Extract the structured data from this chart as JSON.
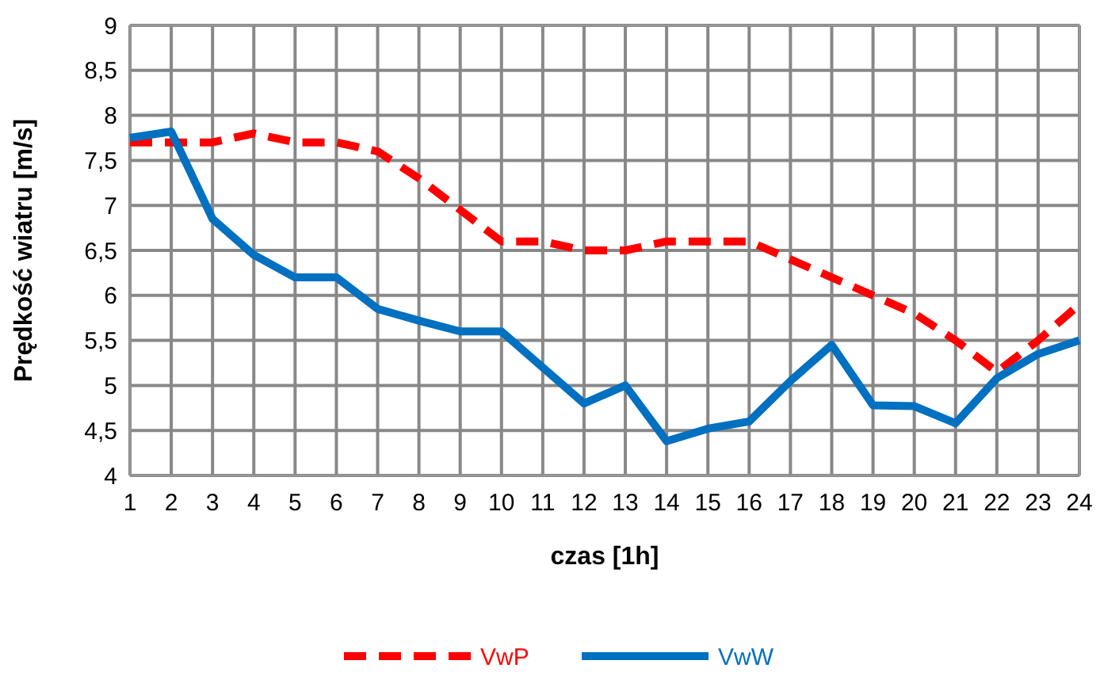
{
  "chart_data": {
    "type": "line",
    "xlabel": "czas [1h]",
    "ylabel": "Prędkość wiatru [m/s]",
    "x": [
      1,
      2,
      3,
      4,
      5,
      6,
      7,
      8,
      9,
      10,
      11,
      12,
      13,
      14,
      15,
      16,
      17,
      18,
      19,
      20,
      21,
      22,
      23,
      24
    ],
    "series": [
      {
        "name": "VwP",
        "color": "#ff0000",
        "line_style": "dashed",
        "values": [
          7.7,
          7.7,
          7.7,
          7.8,
          7.7,
          7.7,
          7.6,
          7.3,
          6.95,
          6.6,
          6.6,
          6.5,
          6.5,
          6.6,
          6.6,
          6.6,
          6.4,
          6.2,
          6.0,
          5.8,
          5.5,
          5.15,
          5.5,
          5.9
        ]
      },
      {
        "name": "VwW",
        "color": "#0070c0",
        "line_style": "solid",
        "values": [
          7.75,
          7.82,
          6.85,
          6.45,
          6.2,
          6.2,
          5.85,
          5.72,
          5.6,
          5.6,
          5.2,
          4.8,
          5.0,
          4.38,
          4.52,
          4.6,
          5.05,
          5.45,
          4.78,
          4.77,
          4.58,
          5.08,
          5.35,
          5.5
        ]
      }
    ],
    "xlim": [
      1,
      24
    ],
    "xticks": [
      1,
      2,
      3,
      4,
      5,
      6,
      7,
      8,
      9,
      10,
      11,
      12,
      13,
      14,
      15,
      16,
      17,
      18,
      19,
      20,
      21,
      22,
      23,
      24
    ],
    "ylim": [
      4,
      9
    ],
    "yticks": [
      4,
      {
        "value": 4.5,
        "label": "4,5"
      },
      5,
      {
        "value": 5.5,
        "label": "5,5"
      },
      6,
      {
        "value": 6.5,
        "label": "6,5"
      },
      7,
      {
        "value": 7.5,
        "label": "7,5"
      },
      8,
      {
        "value": 8.5,
        "label": "8,5"
      },
      9
    ],
    "grid": true,
    "legend": "bottom",
    "marker": "none"
  }
}
